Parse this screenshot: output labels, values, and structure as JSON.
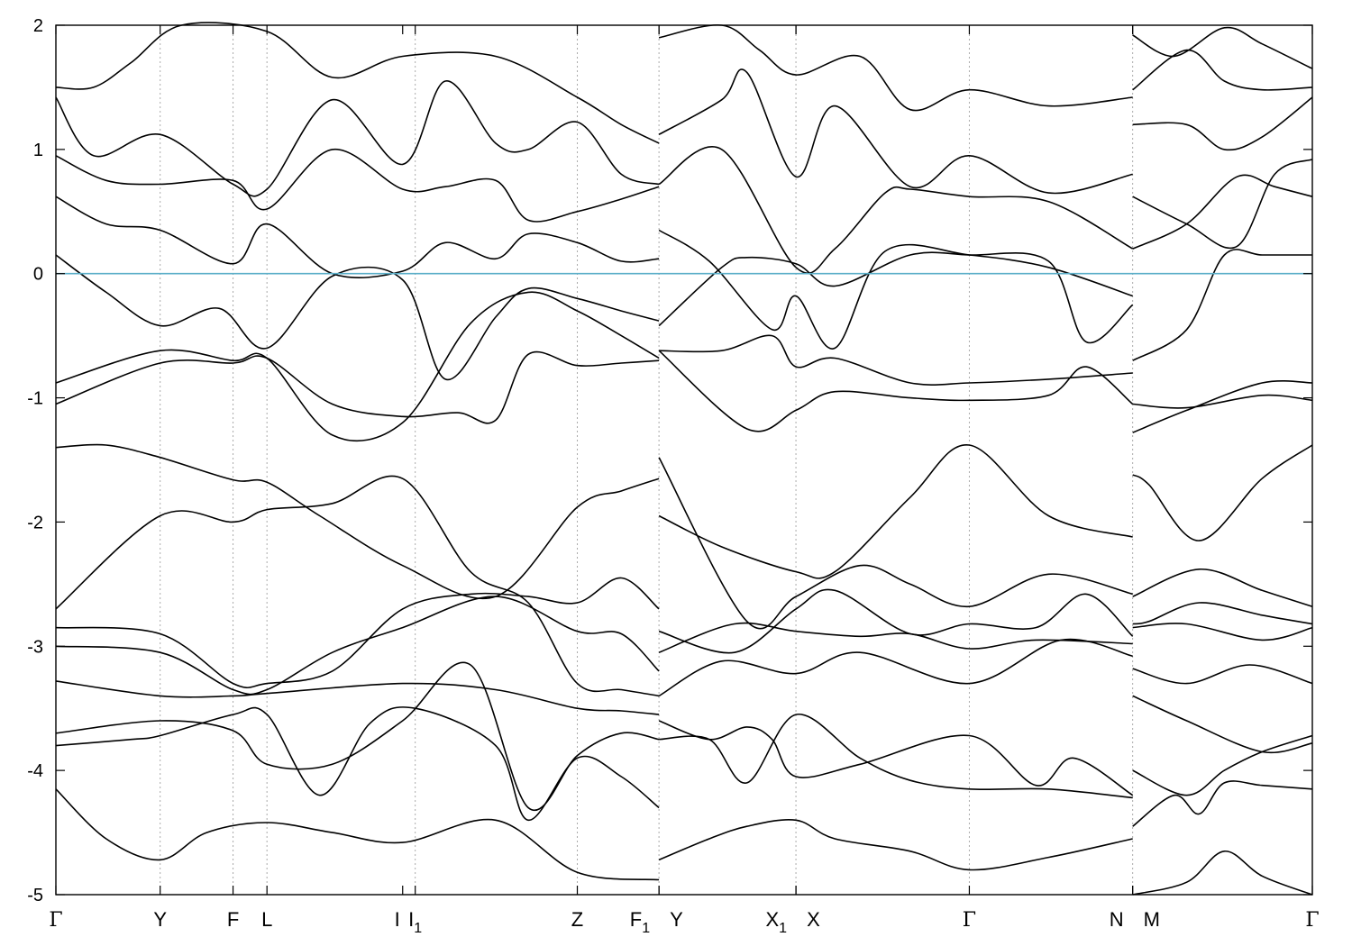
{
  "chart_data": {
    "type": "line",
    "title": "",
    "xlabel": "",
    "ylabel": "",
    "ylim": [
      -5,
      2
    ],
    "yticks": [
      -5,
      -4,
      -3,
      -2,
      -1,
      0,
      1,
      2
    ],
    "ytick_labels": [
      "-5",
      "-4",
      "-3",
      "-2",
      "-1",
      "0",
      "1",
      "2"
    ],
    "xlim": [
      0,
      1
    ],
    "kpoints": [
      {
        "pos": 0.0,
        "label": "Γ",
        "greek": true
      },
      {
        "pos": 0.083,
        "label": "Y",
        "greek": false
      },
      {
        "pos": 0.141,
        "label": "F",
        "greek": false
      },
      {
        "pos": 0.168,
        "label": "L",
        "greek": false
      },
      {
        "pos": 0.276,
        "label": "I",
        "greek": false
      },
      {
        "pos": 0.286,
        "label": "I",
        "sub": "1",
        "greek": false
      },
      {
        "pos": 0.415,
        "label": "Z",
        "greek": false
      },
      {
        "pos": 0.48,
        "label": "F",
        "sub": "1",
        "greek": false
      },
      {
        "pos": 0.48,
        "label": "Y",
        "greek": false,
        "offset": "right"
      },
      {
        "pos": 0.589,
        "label": "X",
        "sub": "1",
        "greek": false
      },
      {
        "pos": 0.589,
        "label": "X",
        "greek": false,
        "offset": "right"
      },
      {
        "pos": 0.727,
        "label": "Γ",
        "greek": true
      },
      {
        "pos": 0.857,
        "label": "N",
        "greek": false
      },
      {
        "pos": 0.857,
        "label": "M",
        "greek": false,
        "offset": "right"
      },
      {
        "pos": 1.0,
        "label": "Γ",
        "greek": true
      }
    ],
    "vlines": [
      0.083,
      0.141,
      0.168,
      0.286,
      0.415,
      0.48,
      0.589,
      0.727,
      0.857
    ],
    "fermi_level": 0,
    "grid": false,
    "legend": "none",
    "colors": {
      "bands": "#000000",
      "fermi": "#5aaec8",
      "gridlines": "#aaaaaa",
      "frame": "#000000"
    },
    "series": [
      {
        "x": [
          0,
          0.04,
          0.083,
          0.12,
          0.168,
          0.22,
          0.276,
          0.35,
          0.415,
          0.48
        ],
        "y": [
          -4.15,
          -4.55,
          -4.72,
          -4.5,
          -4.42,
          -4.5,
          -4.58,
          -4.4,
          -4.82,
          -4.88
        ]
      },
      {
        "x": [
          0,
          0.06,
          0.083,
          0.141,
          0.168,
          0.21,
          0.25,
          0.286,
          0.35,
          0.376,
          0.415,
          0.45,
          0.48
        ],
        "y": [
          -3.8,
          -3.75,
          -3.72,
          -3.55,
          -3.55,
          -4.2,
          -3.62,
          -3.5,
          -3.8,
          -4.4,
          -3.9,
          -4.05,
          -4.3
        ]
      },
      {
        "x": [
          0,
          0.083,
          0.141,
          0.168,
          0.22,
          0.276,
          0.33,
          0.376,
          0.415,
          0.45,
          0.48
        ],
        "y": [
          -3.7,
          -3.6,
          -3.68,
          -3.95,
          -3.95,
          -3.6,
          -3.15,
          -4.3,
          -3.88,
          -3.7,
          -3.75
        ]
      },
      {
        "x": [
          0,
          0.083,
          0.141,
          0.168,
          0.276,
          0.35,
          0.415,
          0.45,
          0.48
        ],
        "y": [
          -3.28,
          -3.4,
          -3.4,
          -3.38,
          -3.3,
          -3.35,
          -3.5,
          -3.52,
          -3.55
        ]
      },
      {
        "x": [
          0,
          0.083,
          0.141,
          0.168,
          0.22,
          0.276,
          0.35,
          0.415,
          0.45,
          0.48
        ],
        "y": [
          -3.0,
          -3.05,
          -3.35,
          -3.35,
          -3.05,
          -2.85,
          -2.6,
          -2.88,
          -2.9,
          -3.2
        ]
      },
      {
        "x": [
          0,
          0.083,
          0.141,
          0.168,
          0.22,
          0.276,
          0.33,
          0.376,
          0.415,
          0.45,
          0.48
        ],
        "y": [
          -2.85,
          -2.9,
          -3.3,
          -3.3,
          -3.2,
          -2.7,
          -2.58,
          -2.6,
          -2.65,
          -2.45,
          -2.7
        ]
      },
      {
        "x": [
          0,
          0.083,
          0.141,
          0.168,
          0.22,
          0.276,
          0.33,
          0.376,
          0.415,
          0.45,
          0.48
        ],
        "y": [
          -2.7,
          -1.95,
          -2.0,
          -1.9,
          -1.85,
          -1.65,
          -2.4,
          -2.65,
          -3.3,
          -3.35,
          -3.4
        ]
      },
      {
        "x": [
          0,
          0.04,
          0.083,
          0.141,
          0.168,
          0.21,
          0.276,
          0.35,
          0.415,
          0.45,
          0.48
        ],
        "y": [
          -1.4,
          -1.38,
          -1.48,
          -1.66,
          -1.68,
          -1.95,
          -2.35,
          -2.6,
          -1.88,
          -1.75,
          -1.65
        ]
      },
      {
        "x": [
          0,
          0.083,
          0.141,
          0.168,
          0.22,
          0.276,
          0.32,
          0.35,
          0.376,
          0.415,
          0.45,
          0.48
        ],
        "y": [
          -1.05,
          -0.72,
          -0.72,
          -0.68,
          -1.05,
          -1.15,
          -1.12,
          -1.18,
          -0.65,
          -0.74,
          -0.72,
          -0.7
        ]
      },
      {
        "x": [
          0,
          0.083,
          0.141,
          0.168,
          0.22,
          0.276,
          0.33,
          0.376,
          0.415,
          0.45,
          0.48
        ],
        "y": [
          -0.88,
          -0.62,
          -0.7,
          -0.68,
          -1.3,
          -1.2,
          -0.4,
          -0.15,
          -0.3,
          -0.5,
          -0.68
        ]
      },
      {
        "x": [
          0,
          0.04,
          0.083,
          0.13,
          0.168,
          0.22,
          0.276,
          0.31,
          0.35,
          0.376,
          0.415,
          0.45,
          0.48
        ],
        "y": [
          0.15,
          -0.15,
          -0.42,
          -0.28,
          -0.6,
          -0.02,
          -0.05,
          -0.85,
          -0.35,
          -0.12,
          -0.2,
          -0.3,
          -0.38
        ]
      },
      {
        "x": [
          0,
          0.04,
          0.083,
          0.141,
          0.168,
          0.22,
          0.276,
          0.31,
          0.35,
          0.376,
          0.415,
          0.45,
          0.48
        ],
        "y": [
          0.62,
          0.4,
          0.35,
          0.08,
          0.4,
          0.0,
          0.02,
          0.25,
          0.12,
          0.32,
          0.25,
          0.1,
          0.12
        ]
      },
      {
        "x": [
          0,
          0.04,
          0.083,
          0.141,
          0.168,
          0.22,
          0.276,
          0.31,
          0.35,
          0.376,
          0.415,
          0.45,
          0.48
        ],
        "y": [
          0.95,
          0.75,
          0.72,
          0.75,
          0.52,
          1.0,
          0.68,
          0.7,
          0.75,
          0.43,
          0.5,
          0.6,
          0.7
        ]
      },
      {
        "x": [
          0,
          0.03,
          0.083,
          0.141,
          0.168,
          0.22,
          0.276,
          0.31,
          0.35,
          0.376,
          0.415,
          0.45,
          0.48
        ],
        "y": [
          1.42,
          0.95,
          1.12,
          0.72,
          0.68,
          1.4,
          0.88,
          1.55,
          1.05,
          1.0,
          1.22,
          0.8,
          0.72
        ]
      },
      {
        "x": [
          0,
          0.03,
          0.06,
          0.1,
          0.168,
          0.22,
          0.276,
          0.35,
          0.415,
          0.45,
          0.48
        ],
        "y": [
          1.5,
          1.5,
          1.7,
          2.0,
          1.95,
          1.58,
          1.75,
          1.75,
          1.42,
          1.2,
          1.05
        ]
      },
      {
        "x": [
          0.48,
          0.52,
          0.55,
          0.589,
          0.62,
          0.68,
          0.727,
          0.79,
          0.857
        ],
        "y": [
          -4.72,
          -4.55,
          -4.45,
          -4.4,
          -4.55,
          -4.65,
          -4.8,
          -4.7,
          -4.55
        ]
      },
      {
        "x": [
          0.48,
          0.52,
          0.55,
          0.589,
          0.64,
          0.68,
          0.727,
          0.79,
          0.857
        ],
        "y": [
          -3.75,
          -3.75,
          -4.1,
          -3.55,
          -3.9,
          -4.08,
          -4.15,
          -4.15,
          -4.22
        ]
      },
      {
        "x": [
          0.48,
          0.52,
          0.55,
          0.57,
          0.589,
          0.64,
          0.727,
          0.78,
          0.81,
          0.857
        ],
        "y": [
          -3.6,
          -3.75,
          -3.65,
          -3.75,
          -4.05,
          -3.95,
          -3.72,
          -4.12,
          -3.9,
          -4.2
        ]
      },
      {
        "x": [
          0.48,
          0.53,
          0.589,
          0.64,
          0.727,
          0.8,
          0.857
        ],
        "y": [
          -3.4,
          -3.12,
          -3.22,
          -3.05,
          -3.3,
          -2.95,
          -3.08
        ]
      },
      {
        "x": [
          0.48,
          0.54,
          0.589,
          0.64,
          0.68,
          0.727,
          0.78,
          0.857
        ],
        "y": [
          -3.05,
          -2.82,
          -2.88,
          -2.92,
          -2.9,
          -3.02,
          -2.95,
          -2.98
        ]
      },
      {
        "x": [
          0.48,
          0.54,
          0.589,
          0.62,
          0.68,
          0.727,
          0.78,
          0.82,
          0.857
        ],
        "y": [
          -2.88,
          -3.05,
          -2.7,
          -2.55,
          -2.9,
          -2.82,
          -2.85,
          -2.58,
          -2.92
        ]
      },
      {
        "x": [
          0.48,
          0.55,
          0.589,
          0.64,
          0.68,
          0.727,
          0.79,
          0.857
        ],
        "y": [
          -1.48,
          -2.8,
          -2.6,
          -2.35,
          -2.5,
          -2.68,
          -2.42,
          -2.58
        ]
      },
      {
        "x": [
          0.48,
          0.53,
          0.589,
          0.62,
          0.68,
          0.727,
          0.79,
          0.857
        ],
        "y": [
          -1.95,
          -2.2,
          -2.4,
          -2.4,
          -1.8,
          -1.38,
          -1.95,
          -2.12
        ]
      },
      {
        "x": [
          0.48,
          0.55,
          0.589,
          0.62,
          0.68,
          0.727,
          0.79,
          0.82,
          0.857
        ],
        "y": [
          -0.62,
          -1.25,
          -1.1,
          -0.95,
          -1.0,
          -1.02,
          -0.98,
          -0.75,
          -1.05
        ]
      },
      {
        "x": [
          0.48,
          0.53,
          0.57,
          0.589,
          0.62,
          0.68,
          0.727,
          0.79,
          0.857
        ],
        "y": [
          -0.62,
          -0.62,
          -0.5,
          -0.75,
          -0.68,
          -0.88,
          -0.88,
          -0.85,
          -0.8
        ]
      },
      {
        "x": [
          0.48,
          0.53,
          0.55,
          0.589,
          0.62,
          0.68,
          0.727,
          0.79,
          0.82,
          0.857
        ],
        "y": [
          -0.42,
          0.05,
          0.13,
          0.08,
          -0.1,
          0.15,
          0.15,
          0.1,
          -0.55,
          -0.25
        ]
      },
      {
        "x": [
          0.48,
          0.52,
          0.57,
          0.589,
          0.62,
          0.66,
          0.727,
          0.79,
          0.857
        ],
        "y": [
          0.35,
          0.1,
          -0.45,
          -0.18,
          -0.6,
          0.18,
          0.15,
          0.05,
          -0.18
        ]
      },
      {
        "x": [
          0.48,
          0.53,
          0.589,
          0.62,
          0.66,
          0.68,
          0.727,
          0.79,
          0.857
        ],
        "y": [
          0.72,
          1.0,
          0.05,
          0.2,
          0.65,
          0.68,
          0.62,
          0.58,
          0.2
        ]
      },
      {
        "x": [
          0.48,
          0.53,
          0.55,
          0.589,
          0.62,
          0.68,
          0.727,
          0.79,
          0.857
        ],
        "y": [
          1.12,
          1.4,
          1.62,
          0.78,
          1.35,
          0.7,
          0.95,
          0.65,
          0.8
        ]
      },
      {
        "x": [
          0.48,
          0.53,
          0.56,
          0.589,
          0.64,
          0.68,
          0.727,
          0.79,
          0.857
        ],
        "y": [
          1.9,
          2.0,
          1.8,
          1.6,
          1.75,
          1.32,
          1.48,
          1.35,
          1.42
        ]
      },
      {
        "x": [
          0.857,
          0.9,
          0.93,
          0.96,
          1.0
        ],
        "y": [
          -5.0,
          -4.9,
          -4.65,
          -4.85,
          -5.0
        ]
      },
      {
        "x": [
          0.857,
          0.89,
          0.91,
          0.93,
          0.96,
          1.0
        ],
        "y": [
          -4.45,
          -4.2,
          -4.35,
          -4.1,
          -4.12,
          -4.15
        ]
      },
      {
        "x": [
          0.857,
          0.9,
          0.93,
          0.96,
          1.0
        ],
        "y": [
          -4.0,
          -4.2,
          -4.0,
          -3.85,
          -3.72
        ]
      },
      {
        "x": [
          0.857,
          0.9,
          0.96,
          1.0
        ],
        "y": [
          -3.4,
          -3.6,
          -3.85,
          -3.78
        ]
      },
      {
        "x": [
          0.857,
          0.9,
          0.95,
          1.0
        ],
        "y": [
          -3.18,
          -3.3,
          -3.15,
          -3.3
        ]
      },
      {
        "x": [
          0.857,
          0.9,
          0.96,
          1.0
        ],
        "y": [
          -2.85,
          -2.82,
          -2.95,
          -2.85
        ]
      },
      {
        "x": [
          0.857,
          0.87,
          0.91,
          0.96,
          1.0
        ],
        "y": [
          -2.82,
          -2.8,
          -2.65,
          -2.75,
          -2.82
        ]
      },
      {
        "x": [
          0.857,
          0.91,
          0.96,
          1.0
        ],
        "y": [
          -2.6,
          -2.38,
          -2.55,
          -2.68
        ]
      },
      {
        "x": [
          0.857,
          0.87,
          0.91,
          0.96,
          1.0
        ],
        "y": [
          -1.62,
          -1.7,
          -2.15,
          -1.65,
          -1.38
        ]
      },
      {
        "x": [
          0.857,
          0.9,
          0.96,
          1.0
        ],
        "y": [
          -1.28,
          -1.1,
          -0.88,
          -0.88
        ]
      },
      {
        "x": [
          0.857,
          0.9,
          0.96,
          1.0
        ],
        "y": [
          -1.05,
          -1.08,
          -0.98,
          -1.02
        ]
      },
      {
        "x": [
          0.857,
          0.9,
          0.93,
          0.96,
          1.0
        ],
        "y": [
          -0.7,
          -0.45,
          0.15,
          0.15,
          0.15
        ]
      },
      {
        "x": [
          0.857,
          0.9,
          0.94,
          0.97,
          1.0
        ],
        "y": [
          0.62,
          0.4,
          0.22,
          0.8,
          0.92
        ]
      },
      {
        "x": [
          0.857,
          0.9,
          0.94,
          0.97,
          1.0
        ],
        "y": [
          0.2,
          0.4,
          0.78,
          0.7,
          0.62
        ]
      },
      {
        "x": [
          0.857,
          0.9,
          0.93,
          0.96,
          1.0
        ],
        "y": [
          1.2,
          1.2,
          1.0,
          1.1,
          1.42
        ]
      },
      {
        "x": [
          0.857,
          0.9,
          0.93,
          0.96,
          1.0
        ],
        "y": [
          1.48,
          1.8,
          1.55,
          1.48,
          1.5
        ]
      },
      {
        "x": [
          0.857,
          0.89,
          0.93,
          0.96,
          1.0
        ],
        "y": [
          1.92,
          1.75,
          1.98,
          1.85,
          1.65
        ]
      }
    ]
  }
}
